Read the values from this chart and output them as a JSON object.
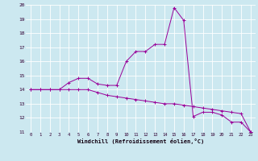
{
  "xlabel": "Windchill (Refroidissement éolien,°C)",
  "bg_color": "#cce8f0",
  "line_color": "#990099",
  "grid_color": "#ffffff",
  "xlim": [
    -0.5,
    23.5
  ],
  "ylim": [
    11,
    20
  ],
  "yticks": [
    11,
    12,
    13,
    14,
    15,
    16,
    17,
    18,
    19,
    20
  ],
  "xticks": [
    0,
    1,
    2,
    3,
    4,
    5,
    6,
    7,
    8,
    9,
    10,
    11,
    12,
    13,
    14,
    15,
    16,
    17,
    18,
    19,
    20,
    21,
    22,
    23
  ],
  "hours": [
    0,
    1,
    2,
    3,
    4,
    5,
    6,
    7,
    8,
    9,
    10,
    11,
    12,
    13,
    14,
    15,
    16,
    17,
    18,
    19,
    20,
    21,
    22,
    23
  ],
  "temp_up": [
    14.0,
    14.0,
    14.0,
    14.0,
    14.5,
    14.8,
    14.8,
    14.4,
    14.3,
    14.3,
    16.0,
    16.7,
    16.7,
    17.2,
    17.2,
    19.8,
    18.9,
    12.1,
    12.4,
    12.4,
    12.2,
    11.7,
    11.7,
    11.0
  ],
  "temp_down": [
    14.0,
    14.0,
    14.0,
    14.0,
    14.0,
    14.0,
    14.0,
    13.8,
    13.6,
    13.5,
    13.4,
    13.3,
    13.2,
    13.1,
    13.0,
    13.0,
    12.9,
    12.8,
    12.7,
    12.6,
    12.5,
    12.4,
    12.3,
    11.0
  ]
}
